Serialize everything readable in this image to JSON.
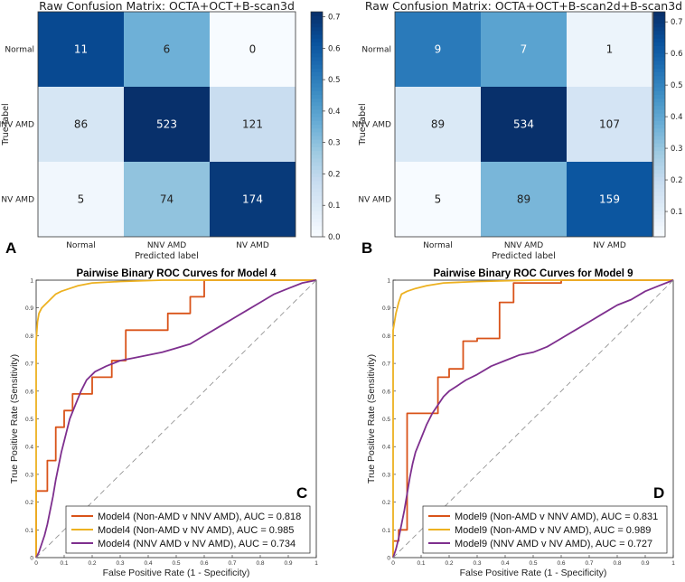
{
  "chart_data": [
    {
      "panel": "A",
      "type": "heatmap",
      "title": "Raw Confusion Matrix: OCTA+OCT+B-scan3d",
      "xlabel": "Predicted label",
      "ylabel": "True label",
      "row_labels": [
        "Normal",
        "NNV AMD",
        "NV AMD"
      ],
      "col_labels": [
        "Normal",
        "NNV AMD",
        "NV AMD"
      ],
      "counts": [
        [
          11,
          6,
          0
        ],
        [
          86,
          523,
          121
        ],
        [
          5,
          74,
          174
        ]
      ],
      "normalized": [
        [
          0.647,
          0.353,
          0.0
        ],
        [
          0.118,
          0.716,
          0.166
        ],
        [
          0.02,
          0.292,
          0.688
        ]
      ],
      "colorbar_ticks": [
        "0.0",
        "0.1",
        "0.2",
        "0.3",
        "0.4",
        "0.5",
        "0.6",
        "0.7"
      ],
      "colorbar_range": [
        0,
        0.716
      ]
    },
    {
      "panel": "B",
      "type": "heatmap",
      "title": "Raw Confusion Matrix: OCTA+OCT+B-scan2d+B-scan3d",
      "xlabel": "Predicted label",
      "ylabel": "True label",
      "row_labels": [
        "Normal",
        "NNV AMD",
        "NV AMD"
      ],
      "col_labels": [
        "Normal",
        "NNV AMD",
        "NV AMD"
      ],
      "counts": [
        [
          9,
          7,
          1
        ],
        [
          89,
          534,
          107
        ],
        [
          5,
          89,
          159
        ]
      ],
      "normalized": [
        [
          0.529,
          0.412,
          0.059
        ],
        [
          0.122,
          0.732,
          0.147
        ],
        [
          0.02,
          0.352,
          0.628
        ]
      ],
      "colorbar_ticks": [
        "0.1",
        "0.2",
        "0.3",
        "0.4",
        "0.5",
        "0.6",
        "0.7"
      ],
      "colorbar_range": [
        0.02,
        0.732
      ]
    },
    {
      "panel": "C",
      "type": "line",
      "title": "Pairwise Binary ROC Curves for Model 4",
      "xlabel": "False Positive Rate (1 - Specificity)",
      "ylabel": "True Positive Rate (Sensitivity)",
      "xlim": [
        0,
        1
      ],
      "ylim": [
        0,
        1
      ],
      "ticks": [
        "0",
        "0.1",
        "0.2",
        "0.3",
        "0.4",
        "0.5",
        "0.6",
        "0.7",
        "0.8",
        "0.9",
        "1"
      ],
      "legend_position": "bottom-right",
      "series": [
        {
          "name": "Model4 (Non-AMD v NNV AMD), AUC = 0.818",
          "color": "#d95319",
          "points": [
            [
              0,
              0
            ],
            [
              0,
              0.24
            ],
            [
              0.04,
              0.24
            ],
            [
              0.04,
              0.35
            ],
            [
              0.07,
              0.35
            ],
            [
              0.07,
              0.47
            ],
            [
              0.1,
              0.47
            ],
            [
              0.1,
              0.53
            ],
            [
              0.13,
              0.53
            ],
            [
              0.13,
              0.59
            ],
            [
              0.2,
              0.59
            ],
            [
              0.2,
              0.65
            ],
            [
              0.27,
              0.65
            ],
            [
              0.27,
              0.71
            ],
            [
              0.32,
              0.71
            ],
            [
              0.32,
              0.82
            ],
            [
              0.47,
              0.82
            ],
            [
              0.47,
              0.88
            ],
            [
              0.55,
              0.88
            ],
            [
              0.55,
              0.94
            ],
            [
              0.6,
              0.94
            ],
            [
              0.6,
              1.0
            ],
            [
              1,
              1
            ]
          ]
        },
        {
          "name": "Model4 (Non-AMD v NV AMD), AUC = 0.985",
          "color": "#edb120",
          "points": [
            [
              0,
              0
            ],
            [
              0,
              0.78
            ],
            [
              0.005,
              0.85
            ],
            [
              0.01,
              0.88
            ],
            [
              0.02,
              0.9
            ],
            [
              0.03,
              0.91
            ],
            [
              0.05,
              0.93
            ],
            [
              0.07,
              0.95
            ],
            [
              0.09,
              0.96
            ],
            [
              0.12,
              0.97
            ],
            [
              0.15,
              0.98
            ],
            [
              0.2,
              0.99
            ],
            [
              0.3,
              0.995
            ],
            [
              0.45,
              1.0
            ],
            [
              1,
              1
            ]
          ]
        },
        {
          "name": "Model4 (NNV AMD v NV AMD), AUC = 0.734",
          "color": "#7e2f8e",
          "points": [
            [
              0,
              0
            ],
            [
              0.01,
              0.02
            ],
            [
              0.02,
              0.05
            ],
            [
              0.03,
              0.08
            ],
            [
              0.04,
              0.12
            ],
            [
              0.05,
              0.17
            ],
            [
              0.06,
              0.22
            ],
            [
              0.07,
              0.28
            ],
            [
              0.08,
              0.33
            ],
            [
              0.09,
              0.38
            ],
            [
              0.1,
              0.42
            ],
            [
              0.11,
              0.46
            ],
            [
              0.12,
              0.5
            ],
            [
              0.14,
              0.55
            ],
            [
              0.16,
              0.6
            ],
            [
              0.18,
              0.64
            ],
            [
              0.21,
              0.67
            ],
            [
              0.25,
              0.69
            ],
            [
              0.3,
              0.71
            ],
            [
              0.35,
              0.72
            ],
            [
              0.4,
              0.73
            ],
            [
              0.45,
              0.74
            ],
            [
              0.5,
              0.755
            ],
            [
              0.55,
              0.77
            ],
            [
              0.6,
              0.8
            ],
            [
              0.65,
              0.83
            ],
            [
              0.7,
              0.86
            ],
            [
              0.75,
              0.89
            ],
            [
              0.8,
              0.92
            ],
            [
              0.85,
              0.95
            ],
            [
              0.9,
              0.97
            ],
            [
              0.95,
              0.99
            ],
            [
              1,
              1
            ]
          ]
        },
        {
          "name": "",
          "color": "#888888",
          "dashed": true,
          "points": [
            [
              0,
              0
            ],
            [
              1,
              1
            ]
          ]
        }
      ]
    },
    {
      "panel": "D",
      "type": "line",
      "title": "Pairwise Binary ROC Curves for Model 9",
      "xlabel": "False Positive Rate (1 - Specificity)",
      "ylabel": "True Positive Rate (Sensitivity)",
      "xlim": [
        0,
        1
      ],
      "ylim": [
        0,
        1
      ],
      "ticks": [
        "0",
        "0.1",
        "0.2",
        "0.3",
        "0.4",
        "0.5",
        "0.6",
        "0.7",
        "0.8",
        "0.9",
        "1"
      ],
      "legend_position": "bottom-right",
      "series": [
        {
          "name": "Model9 (Non-AMD v NNV AMD), AUC = 0.831",
          "color": "#d95319",
          "points": [
            [
              0,
              0
            ],
            [
              0,
              0.06
            ],
            [
              0.02,
              0.06
            ],
            [
              0.02,
              0.1
            ],
            [
              0.05,
              0.1
            ],
            [
              0.05,
              0.52
            ],
            [
              0.16,
              0.52
            ],
            [
              0.16,
              0.65
            ],
            [
              0.2,
              0.65
            ],
            [
              0.2,
              0.68
            ],
            [
              0.25,
              0.68
            ],
            [
              0.25,
              0.78
            ],
            [
              0.3,
              0.78
            ],
            [
              0.3,
              0.79
            ],
            [
              0.38,
              0.79
            ],
            [
              0.38,
              0.92
            ],
            [
              0.43,
              0.92
            ],
            [
              0.43,
              0.99
            ],
            [
              0.6,
              0.99
            ],
            [
              0.6,
              1.0
            ],
            [
              1,
              1
            ]
          ]
        },
        {
          "name": "Model9 (Non-AMD v NV AMD), AUC = 0.989",
          "color": "#edb120",
          "points": [
            [
              0,
              0
            ],
            [
              0,
              0.82
            ],
            [
              0.01,
              0.88
            ],
            [
              0.02,
              0.92
            ],
            [
              0.03,
              0.95
            ],
            [
              0.05,
              0.96
            ],
            [
              0.08,
              0.97
            ],
            [
              0.12,
              0.98
            ],
            [
              0.18,
              0.99
            ],
            [
              0.3,
              0.995
            ],
            [
              0.5,
              1.0
            ],
            [
              1,
              1
            ]
          ]
        },
        {
          "name": "Model9 (NNV AMD v NV AMD), AUC = 0.727",
          "color": "#7e2f8e",
          "points": [
            [
              0,
              0
            ],
            [
              0.01,
              0.03
            ],
            [
              0.02,
              0.07
            ],
            [
              0.03,
              0.12
            ],
            [
              0.04,
              0.17
            ],
            [
              0.05,
              0.23
            ],
            [
              0.06,
              0.29
            ],
            [
              0.07,
              0.34
            ],
            [
              0.08,
              0.38
            ],
            [
              0.1,
              0.43
            ],
            [
              0.12,
              0.48
            ],
            [
              0.14,
              0.52
            ],
            [
              0.16,
              0.55
            ],
            [
              0.18,
              0.58
            ],
            [
              0.2,
              0.6
            ],
            [
              0.23,
              0.62
            ],
            [
              0.26,
              0.64
            ],
            [
              0.3,
              0.66
            ],
            [
              0.35,
              0.69
            ],
            [
              0.4,
              0.71
            ],
            [
              0.45,
              0.73
            ],
            [
              0.5,
              0.74
            ],
            [
              0.55,
              0.76
            ],
            [
              0.6,
              0.79
            ],
            [
              0.65,
              0.82
            ],
            [
              0.7,
              0.85
            ],
            [
              0.75,
              0.88
            ],
            [
              0.8,
              0.91
            ],
            [
              0.85,
              0.93
            ],
            [
              0.9,
              0.96
            ],
            [
              0.95,
              0.98
            ],
            [
              1,
              1
            ]
          ]
        },
        {
          "name": "",
          "color": "#888888",
          "dashed": true,
          "points": [
            [
              0,
              0
            ],
            [
              1,
              1
            ]
          ]
        }
      ]
    }
  ]
}
